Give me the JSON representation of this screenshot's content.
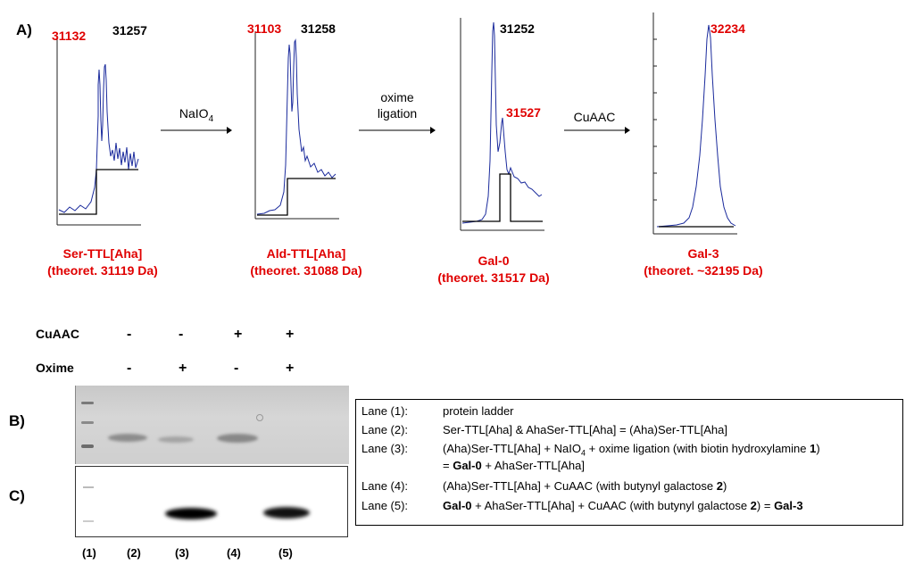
{
  "panel_a": {
    "label": "A)",
    "spectra": [
      {
        "peak_red": "31132",
        "peak_black": "31257",
        "name": "Ser-TTL[Aha]",
        "theoretical": "(theoret. 31119 Da)"
      },
      {
        "peak_red": "31103",
        "peak_black": "31258",
        "name": "Ald-TTL[Aha]",
        "theoretical": "(theoret. 31088 Da)"
      },
      {
        "peak_black": "31252",
        "peak_red": "31527",
        "name": "Gal-0",
        "theoretical": "(theoret. 31517 Da)"
      },
      {
        "peak_red": "32234",
        "name": "Gal-3",
        "theoretical": "(theoret. ~32195 Da)"
      }
    ],
    "arrows": [
      {
        "label": "NaIO",
        "sub": "4"
      },
      {
        "line1": "oxime",
        "line2": "ligation"
      },
      {
        "label": "CuAAC"
      }
    ]
  },
  "gel": {
    "rows": [
      {
        "label": "CuAAC",
        "signs": [
          "-",
          "-",
          "+",
          "+"
        ]
      },
      {
        "label": "Oxime",
        "signs": [
          "-",
          "+",
          "-",
          "+"
        ]
      }
    ],
    "panel_b_label": "B)",
    "panel_c_label": "C)",
    "lanes": [
      "(1)",
      "(2)",
      "(3)",
      "(4)",
      "(5)"
    ]
  },
  "legend": {
    "rows": [
      {
        "lane": "Lane (1):",
        "desc": "protein ladder"
      },
      {
        "lane": "Lane (2):",
        "desc": "Ser-TTL[Aha]  & AhaSer-TTL[Aha]  = (Aha)Ser-TTL[Aha]"
      },
      {
        "lane": "Lane (3):",
        "desc_a": "(Aha)Ser-TTL[Aha] + NaIO",
        "desc_sub": "4",
        "desc_b": " + oxime ligation (with biotin hydroxylamine ",
        "desc_bold": "1",
        "desc_c": ")"
      },
      {
        "lane": "",
        "desc_a": "= ",
        "desc_bold": "Gal-0",
        "desc_b": " + AhaSer-TTL[Aha]"
      },
      {
        "lane": "Lane (4):",
        "desc_a": "(Aha)Ser-TTL[Aha] + CuAAC (with butynyl galactose ",
        "desc_bold": "2",
        "desc_b": ")"
      },
      {
        "lane": "Lane (5):",
        "desc_bold1": "Gal-0",
        "desc_a": " + AhaSer-TTL[Aha]  + CuAAC (with butynyl galactose ",
        "desc_bold2": "2",
        "desc_b": ") = ",
        "desc_bold3": "Gal-3"
      }
    ]
  },
  "colors": {
    "accent_red": "#e00000",
    "trace_blue": "#1a2a9c",
    "gel_c_band": "#000000"
  }
}
